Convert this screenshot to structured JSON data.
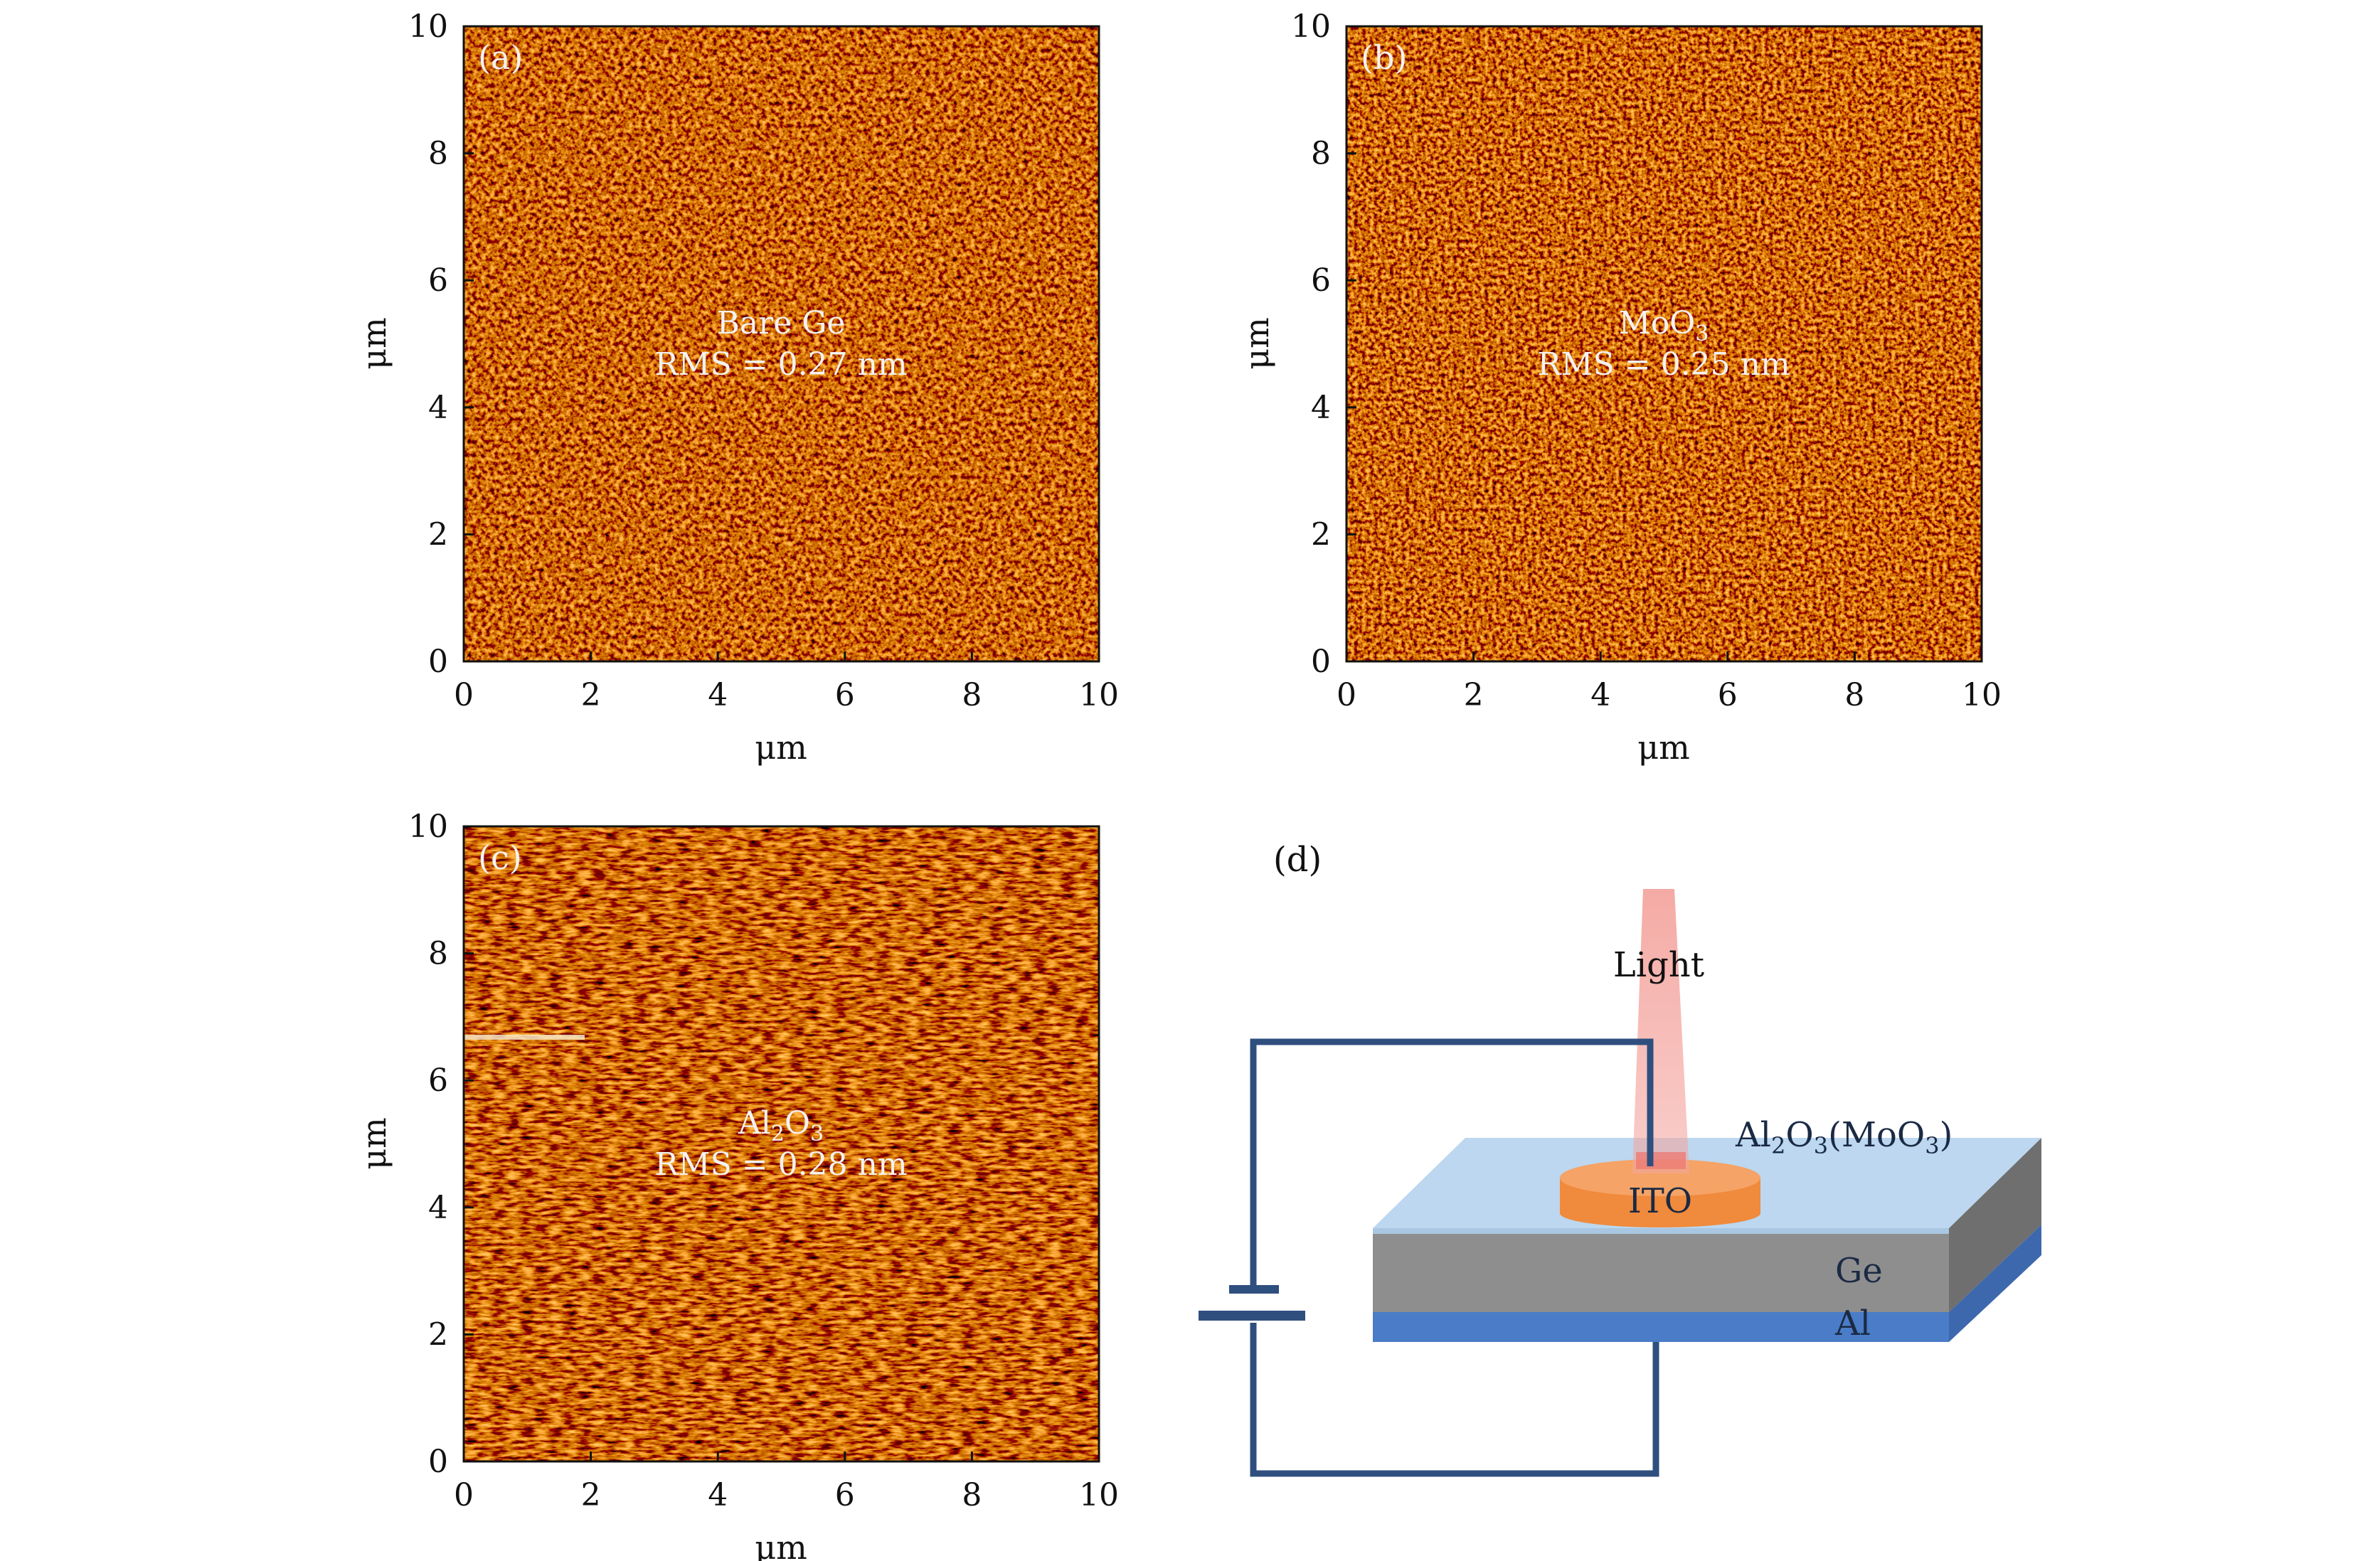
{
  "panels": [
    {
      "id": "a",
      "panel_label": "(a)",
      "annotation_line1": "Bare Ge",
      "annotation_line2": "RMS = 0.27 nm",
      "xlabel": "μm",
      "ylabel": "μm",
      "xlim": [
        0,
        10
      ],
      "ylim": [
        0,
        10
      ],
      "ticks": [
        "0",
        "2",
        "4",
        "6",
        "8",
        "10"
      ],
      "colormap": "afmhot"
    },
    {
      "id": "b",
      "panel_label": "(b)",
      "annotation_line1": "MoO",
      "annotation_line1_sub": "3",
      "annotation_line2": "RMS = 0.25 nm",
      "xlabel": "μm",
      "ylabel": "μm",
      "xlim": [
        0,
        10
      ],
      "ylim": [
        0,
        10
      ],
      "ticks": [
        "0",
        "2",
        "4",
        "6",
        "8",
        "10"
      ],
      "colormap": "afmhot"
    },
    {
      "id": "c",
      "panel_label": "(c)",
      "annotation_line1_parts": [
        "Al",
        "2",
        "O",
        "3"
      ],
      "annotation_line2": "RMS = 0.28 nm",
      "xlabel": "μm",
      "ylabel": "μm",
      "xlim": [
        0,
        10
      ],
      "ylim": [
        0,
        10
      ],
      "ticks": [
        "0",
        "2",
        "4",
        "6",
        "8",
        "10"
      ],
      "colormap": "afmhot"
    }
  ],
  "diagram": {
    "panel_label": "(d)",
    "light_label": "Light",
    "ito_label": "ITO",
    "top_layer_parts": [
      "Al",
      "2",
      "O",
      "3",
      "(MoO",
      "3",
      ")"
    ],
    "ge_label": "Ge",
    "al_label": "Al",
    "colors": {
      "light": "#f4a6a0",
      "ito": "#f08a3c",
      "top_layer": "#bcd7ef",
      "ge": "#8e8e8e",
      "al": "#4a7cc8",
      "wire": "#2f4f7f"
    }
  }
}
